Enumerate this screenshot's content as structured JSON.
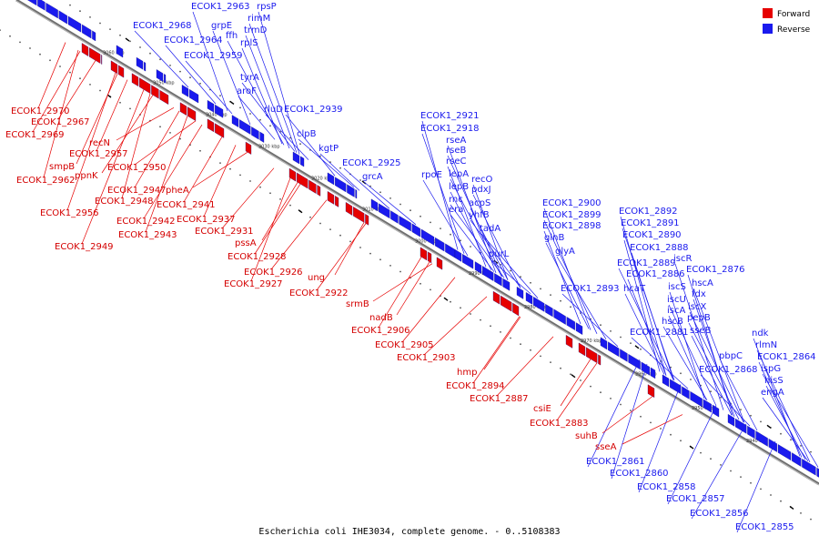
{
  "caption": "Escherichia coli IHE3034, complete genome. - 0..5108383",
  "legend": [
    {
      "label": "Forward",
      "color": "#e60000"
    },
    {
      "label": "Reverse",
      "color": "#1a1aee"
    }
  ],
  "colors": {
    "forward": "#e60000",
    "reverse": "#1a1aee",
    "backbone": "#777777",
    "leader": "#1a1aee"
  },
  "ticks": [
    "3060 kbp",
    "3050 kbp",
    "3040 kbp",
    "3030 kbp",
    "3020 kbp",
    "3010 kbp",
    "3000 kbp",
    "2990 kbp",
    "2980 kbp",
    "2970 kbp",
    "2960 kbp",
    "2950 kbp",
    "2940 kbp"
  ],
  "reverse_labels": [
    "ECOK1_2963",
    "rpsP",
    "rimM",
    "ECOK1_2968",
    "grpE",
    "trmD",
    "ECOK1_2964",
    "ffh",
    "rplS",
    "ECOK1_2959",
    "tyrA",
    "aroF",
    "rluD",
    "ECOK1_2939",
    "clpB",
    "kgtP",
    "ECOK1_2925",
    "grcA",
    "ECOK1_2921",
    "ECOK1_2918",
    "rseA",
    "rseB",
    "rseC",
    "rpoE",
    "lepA",
    "recO",
    "lepB",
    "pdxJ",
    "rnc",
    "acpS",
    "era",
    "yhfB",
    "tadA",
    "purL",
    "ECOK1_2900",
    "ECOK1_2899",
    "ECOK1_2898",
    "glnB",
    "glyA",
    "ECOK1_2893",
    "hcaT",
    "ECOK1_2892",
    "ECOK1_2891",
    "ECOK1_2890",
    "ECOK1_2888",
    "iscR",
    "ECOK1_2889",
    "ECOK1_2886",
    "ECOK1_2876",
    "hscA",
    "iscS",
    "fdx",
    "iscU",
    "iscX",
    "iscA",
    "hscB",
    "pepB",
    "ECOK1_2881",
    "sseB",
    "ndk",
    "rlmN",
    "pbpC",
    "ECOK1_2864",
    "ECOK1_2868",
    "ispG",
    "hisS",
    "engA",
    "ECOK1_2861",
    "ECOK1_2860",
    "ECOK1_2858",
    "ECOK1_2857",
    "ECOK1_2856",
    "ECOK1_2855"
  ],
  "forward_labels": [
    "ECOK1_2970",
    "ECOK1_2967",
    "ECOK1_2969",
    "recN",
    "ECOK1_2957",
    "smpB",
    "ppnK",
    "ECOK1_2950",
    "ECOK1_2962",
    "ECOK1_2947",
    "pheA",
    "ECOK1_2948",
    "ECOK1_2941",
    "ECOK1_2956",
    "ECOK1_2942",
    "ECOK1_2937",
    "ECOK1_2943",
    "ECOK1_2931",
    "ECOK1_2949",
    "pssA",
    "ECOK1_2928",
    "ECOK1_2926",
    "ung",
    "ECOK1_2927",
    "ECOK1_2922",
    "srmB",
    "nadB",
    "ECOK1_2906",
    "ECOK1_2905",
    "ECOK1_2903",
    "hmp",
    "ECOK1_2894",
    "ECOK1_2887",
    "csiE",
    "ECOK1_2883",
    "suhB",
    "sseA"
  ]
}
